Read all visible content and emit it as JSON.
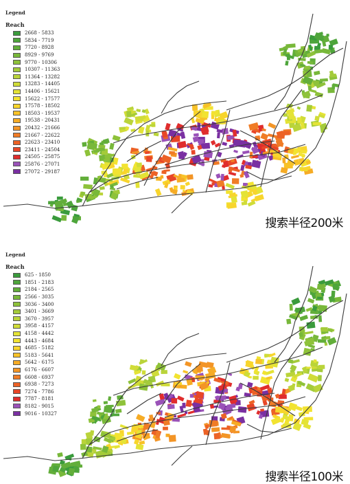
{
  "maps": [
    {
      "legend_title": "Legend",
      "legend_field": "Reach",
      "caption": "搜索半径200米",
      "classes": [
        {
          "range": "2668 - 5833",
          "color": "#3a9b3c"
        },
        {
          "range": "5834 - 7719",
          "color": "#4ea53b"
        },
        {
          "range": "7720 - 8928",
          "color": "#62ae3a"
        },
        {
          "range": "8929 - 9769",
          "color": "#78b83a"
        },
        {
          "range": "9770 - 10306",
          "color": "#8ec23a"
        },
        {
          "range": "10307 - 11363",
          "color": "#a4cb3a"
        },
        {
          "range": "11364 - 13282",
          "color": "#bad43a"
        },
        {
          "range": "13283 - 14405",
          "color": "#d0dc38"
        },
        {
          "range": "14406 - 15621",
          "color": "#e4e336"
        },
        {
          "range": "15622 - 17577",
          "color": "#f2e331"
        },
        {
          "range": "17578 - 18502",
          "color": "#f8d52c"
        },
        {
          "range": "18503 - 19537",
          "color": "#f8c228"
        },
        {
          "range": "19538 - 20431",
          "color": "#f6ac26"
        },
        {
          "range": "20432 - 21666",
          "color": "#f39526"
        },
        {
          "range": "21667 - 22622",
          "color": "#f07c26"
        },
        {
          "range": "22623 - 23410",
          "color": "#ec6226"
        },
        {
          "range": "23411 - 24504",
          "color": "#e84628"
        },
        {
          "range": "24505 - 25875",
          "color": "#e02d2d"
        },
        {
          "range": "25876 - 27071",
          "color": "#9a52b8"
        },
        {
          "range": "27072 - 29187",
          "color": "#7a30a2"
        }
      ]
    },
    {
      "legend_title": "Legend",
      "legend_field": "Reach",
      "caption": "搜索半径100米",
      "classes": [
        {
          "range": "625 - 1850",
          "color": "#3a9b3c"
        },
        {
          "range": "1851 - 2183",
          "color": "#4ea53b"
        },
        {
          "range": "2184 - 2565",
          "color": "#62ae3a"
        },
        {
          "range": "2566 - 3035",
          "color": "#78b83a"
        },
        {
          "range": "3036 - 3400",
          "color": "#8ec23a"
        },
        {
          "range": "3401 - 3669",
          "color": "#a4cb3a"
        },
        {
          "range": "3670 - 3957",
          "color": "#bad43a"
        },
        {
          "range": "3958 - 4157",
          "color": "#d0dc38"
        },
        {
          "range": "4158 - 4442",
          "color": "#e4e336"
        },
        {
          "range": "4443 - 4684",
          "color": "#f2e331"
        },
        {
          "range": "4685 - 5182",
          "color": "#f8d52c"
        },
        {
          "range": "5183 - 5641",
          "color": "#f8c228"
        },
        {
          "range": "5642 - 6175",
          "color": "#f6ac26"
        },
        {
          "range": "6176 - 6607",
          "color": "#f39526"
        },
        {
          "range": "6608 - 6937",
          "color": "#f07c26"
        },
        {
          "range": "6938 - 7273",
          "color": "#ec6226"
        },
        {
          "range": "7274 - 7786",
          "color": "#e84628"
        },
        {
          "range": "7787 - 8181",
          "color": "#e02d2d"
        },
        {
          "range": "8182 - 9015",
          "color": "#9a52b8"
        },
        {
          "range": "9016 - 10327",
          "color": "#7a30a2"
        }
      ]
    }
  ]
}
